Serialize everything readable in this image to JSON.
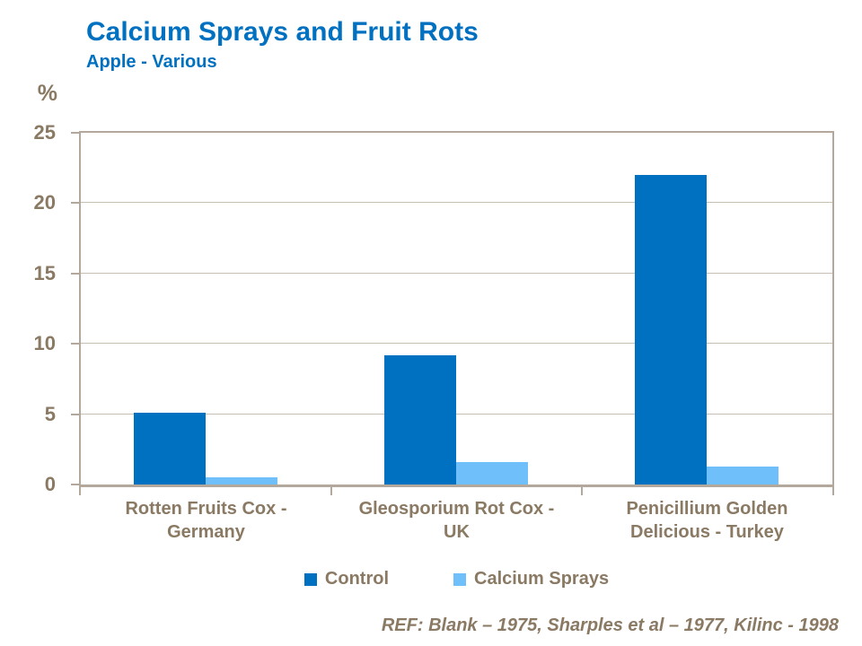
{
  "title": "Calcium Sprays and Fruit Rots",
  "subtitle": "Apple - Various",
  "reference": "REF: Blank – 1975, Sharples et al – 1977, Kilinc - 1998",
  "colors": {
    "title_blue": "#0070C0",
    "control_bar": "#0071C1",
    "calcium_bar": "#6EBFFA",
    "axis_text": "#8A7963",
    "axis_line": "#B3A89B",
    "gridline": "#C8BFB3",
    "background": "#FFFFFF"
  },
  "chart_data": {
    "type": "bar",
    "categories": [
      "Rotten Fruits Cox - Germany",
      "Gleosporium Rot Cox - UK",
      "Penicillium Golden Delicious - Turkey"
    ],
    "series": [
      {
        "name": "Control",
        "color": "#0071C1",
        "values": [
          5.1,
          9.2,
          22.0
        ]
      },
      {
        "name": "Calcium Sprays",
        "color": "#6EBFFA",
        "values": [
          0.5,
          1.6,
          1.3
        ]
      }
    ],
    "title": "Calcium Sprays and Fruit Rots",
    "subtitle": "Apple - Various",
    "xlabel": "",
    "ylabel": "%",
    "ylim": [
      0,
      25
    ],
    "yticks": [
      0,
      5,
      10,
      15,
      20,
      25
    ],
    "grid": true,
    "legend_position": "bottom"
  }
}
